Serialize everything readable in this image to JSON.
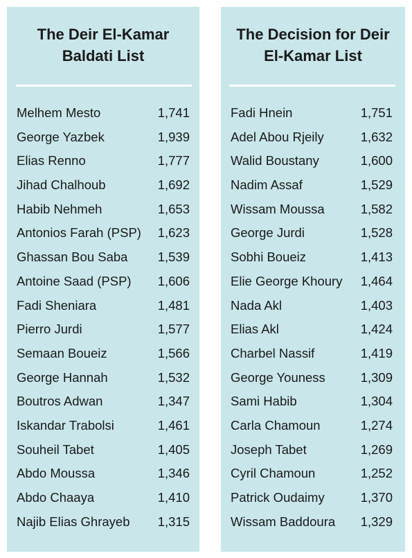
{
  "left_list": {
    "title_line1": "The Deir El-Kamar",
    "title_line2": "Baldati List",
    "candidates": [
      {
        "name": "Melhem Mesto",
        "votes": "1,741"
      },
      {
        "name": "George Yazbek",
        "votes": "1,939"
      },
      {
        "name": "Elias Renno",
        "votes": "1,777"
      },
      {
        "name": "Jihad Chalhoub",
        "votes": "1,692"
      },
      {
        "name": "Habib Nehmeh",
        "votes": "1,653"
      },
      {
        "name": "Antonios Farah (PSP)",
        "votes": "1,623"
      },
      {
        "name": "Ghassan Bou Saba",
        "votes": "1,539"
      },
      {
        "name": "Antoine Saad (PSP)",
        "votes": "1,606"
      },
      {
        "name": "Fadi Sheniara",
        "votes": "1,481"
      },
      {
        "name": "Pierro Jurdi",
        "votes": "1,577"
      },
      {
        "name": "Semaan Boueiz",
        "votes": "1,566"
      },
      {
        "name": "George Hannah",
        "votes": "1,532"
      },
      {
        "name": "Boutros Adwan",
        "votes": "1,347"
      },
      {
        "name": "Iskandar Trabolsi",
        "votes": "1,461"
      },
      {
        "name": "Souheil Tabet",
        "votes": "1,405"
      },
      {
        "name": "Abdo Moussa",
        "votes": "1,346"
      },
      {
        "name": "Abdo Chaaya",
        "votes": "1,410"
      },
      {
        "name": "Najib Elias Ghrayeb",
        "votes": "1,315"
      }
    ]
  },
  "right_list": {
    "title_line1": "The Decision for Deir",
    "title_line2": "El-Kamar List",
    "candidates": [
      {
        "name": "Fadi Hnein",
        "votes": "1,751"
      },
      {
        "name": "Adel Abou Rjeily",
        "votes": "1,632"
      },
      {
        "name": "Walid Boustany",
        "votes": "1,600"
      },
      {
        "name": "Nadim Assaf",
        "votes": "1,529"
      },
      {
        "name": "Wissam Moussa",
        "votes": "1,582"
      },
      {
        "name": "George Jurdi",
        "votes": "1,528"
      },
      {
        "name": "Sobhi Boueiz",
        "votes": "1,413"
      },
      {
        "name": "Elie George Khoury",
        "votes": "1,464"
      },
      {
        "name": "Nada Akl",
        "votes": "1,403"
      },
      {
        "name": "Elias Akl",
        "votes": "1,424"
      },
      {
        "name": "Charbel Nassif",
        "votes": "1,419"
      },
      {
        "name": "George Youness",
        "votes": "1,309"
      },
      {
        "name": "Sami Habib",
        "votes": "1,304"
      },
      {
        "name": "Carla Chamoun",
        "votes": "1,274"
      },
      {
        "name": "Joseph Tabet",
        "votes": "1,269"
      },
      {
        "name": "Cyril Chamoun",
        "votes": "1,252"
      },
      {
        "name": "Patrick Oudaimy",
        "votes": "1,370"
      },
      {
        "name": "Wissam Baddoura",
        "votes": "1,329"
      }
    ]
  },
  "colors": {
    "panel_background": "#c9e6ea",
    "divider": "#ffffff",
    "text": "#1a1a1a"
  }
}
